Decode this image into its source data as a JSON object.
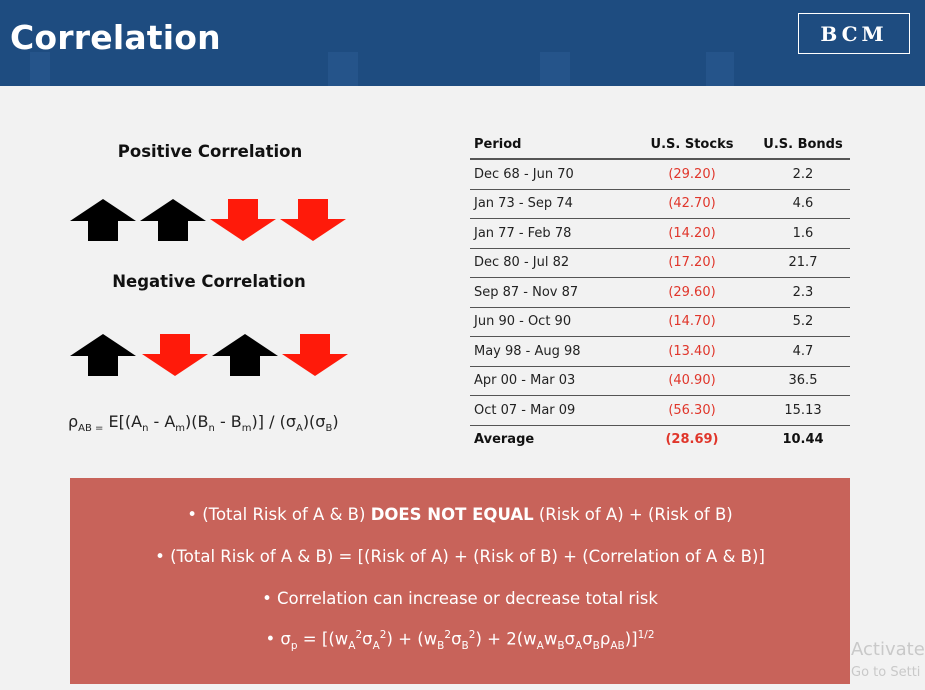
{
  "header": {
    "title": "Correlation",
    "logo_text": "BCM",
    "bg_color": "#1e4c80"
  },
  "left": {
    "positive_heading": "Positive Correlation",
    "negative_heading": "Negative Correlation",
    "positive_arrows": [
      "up",
      "up",
      "down",
      "down"
    ],
    "negative_arrows": [
      "up",
      "down",
      "up",
      "down"
    ],
    "colors": {
      "up": "#000000",
      "down": "#ff1a0a"
    },
    "formula": {
      "rho": "ρ",
      "rho_sub": "AB =",
      "e_open": "E[(A",
      "n1": "n",
      "minus1": " - A",
      "m1": "m",
      "b_open": ")(B",
      "n2": "n",
      "minus2": " - B",
      "m2": "m",
      "close": ")] / (σ",
      "sub_a": "A",
      "mid": ")(σ",
      "sub_b": "B",
      "end": ")"
    }
  },
  "table": {
    "headers": [
      "Period",
      "U.S. Stocks",
      "U.S. Bonds"
    ],
    "rows": [
      [
        "Dec 68 - Jun 70",
        "(29.20)",
        "2.2"
      ],
      [
        "Jan 73 - Sep 74",
        "(42.70)",
        "4.6"
      ],
      [
        "Jan 77 - Feb 78",
        "(14.20)",
        "1.6"
      ],
      [
        "Dec 80 - Jul 82",
        "(17.20)",
        "21.7"
      ],
      [
        "Sep 87 - Nov 87",
        "(29.60)",
        "2.3"
      ],
      [
        "Jun 90 - Oct 90",
        "(14.70)",
        "5.2"
      ],
      [
        "May 98 - Aug 98",
        "(13.40)",
        "4.7"
      ],
      [
        "Apr 00 - Mar 03",
        "(40.90)",
        "36.5"
      ],
      [
        "Oct 07 - Mar 09",
        "(56.30)",
        "15.13"
      ]
    ],
    "average": [
      "Average",
      "(28.69)",
      "10.44"
    ],
    "negative_color": "#e0362b"
  },
  "box": {
    "bg_color": "#c8635a",
    "bullet1": {
      "pre": "• (Total Risk of A & B) ",
      "bold": "DOES NOT EQUAL",
      "post": " (Risk of A) + (Risk of B)"
    },
    "bullet2": "• (Total Risk of A & B) = [(Risk of A) + (Risk of B) + (Correlation of A & B)]",
    "bullet3": "• Correlation can increase or decrease total risk",
    "bullet4": {
      "t1": "• σ",
      "s_p": "p",
      "t2": " = [(w",
      "s_a1": "A",
      "p_2a": "2",
      "t3": "σ",
      "s_a2": "A",
      "p_2b": "2",
      "t4": ") + (w",
      "s_b1": "B",
      "p_2c": "2",
      "t5": "σ",
      "s_b2": "B",
      "p_2d": "2",
      "t6": ") + 2(w",
      "s_a3": "A",
      "t7": "w",
      "s_b3": "B",
      "t8": "σ",
      "s_a4": "A",
      "t9": "σ",
      "s_b4": "B",
      "t10": "ρ",
      "s_ab": "AB",
      "t11": ")]",
      "p_half": "1/2"
    }
  },
  "watermark": {
    "line1": "Activate",
    "line2": "Go to Setti"
  }
}
